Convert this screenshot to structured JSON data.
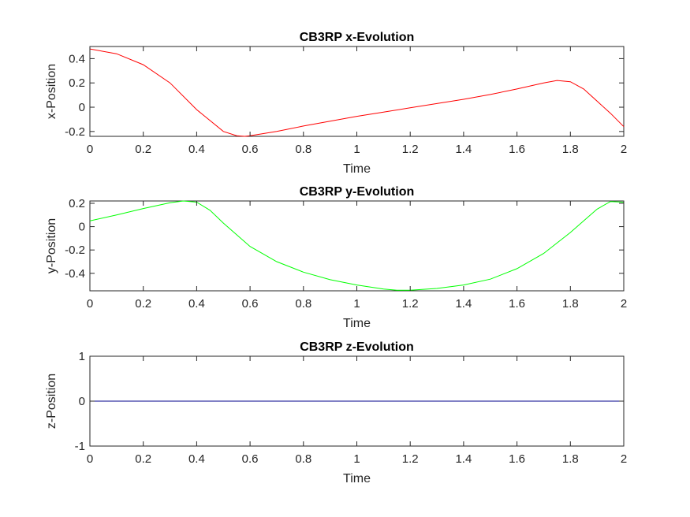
{
  "chart_data": [
    {
      "type": "line",
      "title": "CB3RP x-Evolution",
      "xlabel": "Time",
      "ylabel": "x-Position",
      "xlim": [
        0,
        2
      ],
      "ylim": [
        -0.24,
        0.5
      ],
      "xticks": [
        "0",
        "0.2",
        "0.4",
        "0.6",
        "0.8",
        "1",
        "1.2",
        "1.4",
        "1.6",
        "1.8",
        "2"
      ],
      "yticks": [
        "-0.2",
        "0",
        "0.2",
        "0.4"
      ],
      "ytick_values": [
        -0.2,
        0,
        0.2,
        0.4
      ],
      "grid": false,
      "series": [
        {
          "color": "#ff0000",
          "x": [
            0,
            0.1,
            0.2,
            0.3,
            0.4,
            0.5,
            0.55,
            0.58,
            0.6,
            0.7,
            0.8,
            0.9,
            1.0,
            1.1,
            1.2,
            1.3,
            1.4,
            1.5,
            1.6,
            1.7,
            1.75,
            1.8,
            1.85,
            1.9,
            1.95,
            2.0
          ],
          "y": [
            0.48,
            0.44,
            0.35,
            0.2,
            -0.02,
            -0.2,
            -0.235,
            -0.24,
            -0.235,
            -0.2,
            -0.155,
            -0.115,
            -0.075,
            -0.04,
            -0.005,
            0.03,
            0.065,
            0.105,
            0.15,
            0.2,
            0.22,
            0.21,
            0.15,
            0.05,
            -0.05,
            -0.16
          ]
        }
      ]
    },
    {
      "type": "line",
      "title": "CB3RP y-Evolution",
      "xlabel": "Time",
      "ylabel": "y-Position",
      "xlim": [
        0,
        2
      ],
      "ylim": [
        -0.55,
        0.22
      ],
      "xticks": [
        "0",
        "0.2",
        "0.4",
        "0.6",
        "0.8",
        "1",
        "1.2",
        "1.4",
        "1.6",
        "1.8",
        "2"
      ],
      "yticks": [
        "-0.4",
        "-0.2",
        "0",
        "0.2"
      ],
      "ytick_values": [
        -0.4,
        -0.2,
        0,
        0.2
      ],
      "grid": false,
      "series": [
        {
          "color": "#00ff00",
          "x": [
            0,
            0.1,
            0.2,
            0.3,
            0.35,
            0.4,
            0.45,
            0.5,
            0.6,
            0.7,
            0.8,
            0.9,
            1.0,
            1.1,
            1.15,
            1.2,
            1.3,
            1.4,
            1.5,
            1.6,
            1.7,
            1.8,
            1.9,
            1.95,
            2.0
          ],
          "y": [
            0.05,
            0.1,
            0.155,
            0.205,
            0.22,
            0.21,
            0.14,
            0.03,
            -0.17,
            -0.3,
            -0.39,
            -0.455,
            -0.5,
            -0.535,
            -0.545,
            -0.545,
            -0.53,
            -0.5,
            -0.45,
            -0.36,
            -0.23,
            -0.05,
            0.15,
            0.215,
            0.21
          ]
        }
      ]
    },
    {
      "type": "line",
      "title": "CB3RP z-Evolution",
      "xlabel": "Time",
      "ylabel": "z-Position",
      "xlim": [
        0,
        2
      ],
      "ylim": [
        -1,
        1
      ],
      "xticks": [
        "0",
        "0.2",
        "0.4",
        "0.6",
        "0.8",
        "1",
        "1.2",
        "1.4",
        "1.6",
        "1.8",
        "2"
      ],
      "yticks": [
        "-1",
        "0",
        "1"
      ],
      "ytick_values": [
        -1,
        0,
        1
      ],
      "grid": false,
      "series": [
        {
          "color": "#00008b",
          "x": [
            0,
            2
          ],
          "y": [
            0,
            0
          ]
        }
      ]
    }
  ]
}
